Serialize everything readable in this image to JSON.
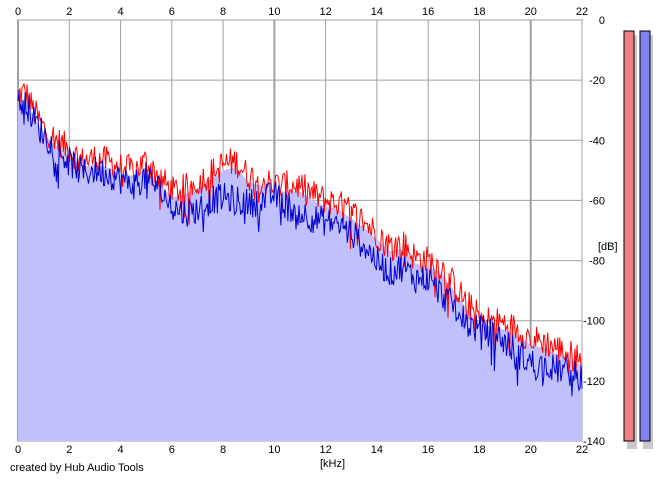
{
  "credit": "created by Hub Audio Tools",
  "chart_data": {
    "type": "area",
    "title": "",
    "xlabel": "[kHz]",
    "ylabel": "[dB]",
    "x_ticks": [
      0,
      2,
      4,
      6,
      8,
      10,
      12,
      14,
      16,
      18,
      20,
      22
    ],
    "y_ticks": [
      0,
      -20,
      -40,
      -60,
      -80,
      -100,
      -120,
      -140
    ],
    "xlim": [
      0,
      22
    ],
    "ylim": [
      -140,
      0
    ],
    "grid": true,
    "x_tick_labels_position": "top and bottom",
    "y_tick_labels_position": "right",
    "series": [
      {
        "color": "#ff0000",
        "x": [
          0,
          0.3,
          0.6,
          1,
          1.5,
          2,
          2.5,
          3,
          3.5,
          4,
          4.5,
          5,
          5.5,
          6,
          6.5,
          7,
          7.5,
          8,
          8.5,
          9,
          9.5,
          10,
          10.5,
          11,
          11.5,
          12,
          12.5,
          13,
          13.5,
          14,
          14.5,
          15,
          15.5,
          16,
          16.5,
          17,
          17.5,
          18,
          18.5,
          19,
          19.5,
          20,
          20.5,
          21,
          21.5,
          22
        ],
        "values": [
          -25,
          -24,
          -30,
          -36,
          -40,
          -43,
          -47,
          -46,
          -47,
          -49,
          -50,
          -47,
          -52,
          -57,
          -56,
          -54,
          -51,
          -48,
          -47,
          -52,
          -53,
          -55,
          -55,
          -55,
          -58,
          -60,
          -61,
          -64,
          -67,
          -71,
          -75,
          -74,
          -79,
          -80,
          -82,
          -88,
          -94,
          -99,
          -100,
          -101,
          -103,
          -106,
          -107,
          -109,
          -111,
          -113
        ]
      },
      {
        "color": "#0000cc",
        "x": [
          0,
          0.3,
          0.6,
          1,
          1.5,
          2,
          2.5,
          3,
          3.5,
          4,
          4.5,
          5,
          5.5,
          6,
          6.5,
          7,
          7.5,
          8,
          8.5,
          9,
          9.5,
          10,
          10.5,
          11,
          11.5,
          12,
          12.5,
          13,
          13.5,
          14,
          14.5,
          15,
          15.5,
          16,
          16.5,
          17,
          17.5,
          18,
          18.5,
          19,
          19.5,
          20,
          20.5,
          21,
          21.5,
          22
        ],
        "values": [
          -28,
          -27,
          -33,
          -38,
          -43,
          -47,
          -51,
          -50,
          -51,
          -53,
          -55,
          -52,
          -56,
          -62,
          -64,
          -63,
          -60,
          -59,
          -60,
          -61,
          -60,
          -58,
          -62,
          -64,
          -66,
          -67,
          -68,
          -71,
          -75,
          -80,
          -84,
          -82,
          -86,
          -86,
          -91,
          -95,
          -101,
          -103,
          -104,
          -107,
          -111,
          -114,
          -115,
          -116,
          -117,
          -119
        ]
      }
    ],
    "fill_color": "#c0c0ff",
    "level_meters": [
      {
        "color": "#f08080",
        "value_db": 0
      },
      {
        "color": "#8080f0",
        "value_db": 0
      }
    ]
  }
}
